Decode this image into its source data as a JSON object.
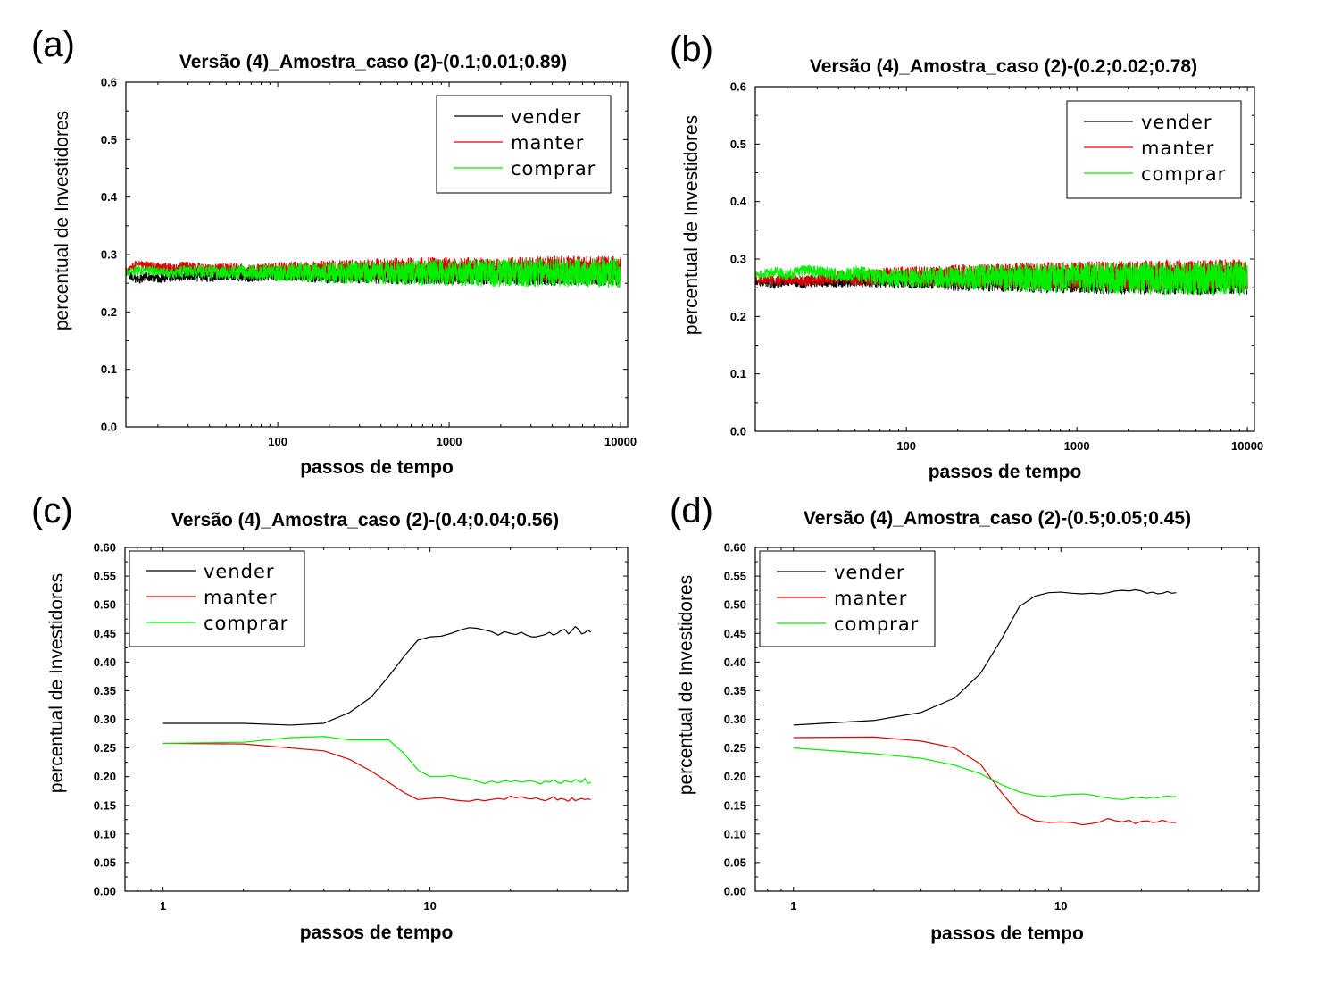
{
  "chart_data": [
    {
      "panel": "(a)",
      "type": "line",
      "title": "Versão (4)_Amostra_caso (2)-(0.1;0.01;0.89)",
      "xlabel": "passos de tempo",
      "ylabel": "percentual de Investidores",
      "xscale": "log",
      "xlim": [
        13,
        11000
      ],
      "ylim": [
        0.0,
        0.6
      ],
      "xticks": [
        100,
        1000,
        10000
      ],
      "xtick_labels": [
        "100",
        "1000",
        "10000"
      ],
      "yticks": [
        0.0,
        0.1,
        0.2,
        0.3,
        0.4,
        0.5,
        0.6
      ],
      "ytick_labels": [
        "0.0",
        "0.1",
        "0.2",
        "0.3",
        "0.4",
        "0.5",
        "0.6"
      ],
      "legend_position": "top-right",
      "series": [
        {
          "name": "vender",
          "color": "#000000",
          "x": [
            13,
            15,
            17,
            20,
            25,
            30,
            40,
            50,
            70,
            100,
            150,
            200,
            300,
            500,
            1000,
            2000,
            5000,
            10000
          ],
          "y": [
            0.268,
            0.255,
            0.262,
            0.258,
            0.262,
            0.264,
            0.261,
            0.266,
            0.263,
            0.267,
            0.265,
            0.264,
            0.266,
            0.265,
            0.266,
            0.266,
            0.265,
            0.266
          ],
          "noise": [
            0.004,
            0.005,
            0.005,
            0.005,
            0.005,
            0.006,
            0.006,
            0.006,
            0.007,
            0.007,
            0.008,
            0.009,
            0.01,
            0.01,
            0.011,
            0.011,
            0.012,
            0.012
          ]
        },
        {
          "name": "manter",
          "color": "#dd0000",
          "x": [
            13,
            15,
            17,
            20,
            25,
            30,
            40,
            50,
            70,
            100,
            150,
            200,
            300,
            500,
            1000,
            2000,
            5000,
            10000
          ],
          "y": [
            0.27,
            0.283,
            0.28,
            0.278,
            0.276,
            0.279,
            0.273,
            0.275,
            0.272,
            0.274,
            0.273,
            0.274,
            0.274,
            0.275,
            0.274,
            0.274,
            0.275,
            0.275
          ],
          "noise": [
            0.004,
            0.005,
            0.005,
            0.005,
            0.006,
            0.006,
            0.006,
            0.007,
            0.007,
            0.008,
            0.009,
            0.01,
            0.011,
            0.012,
            0.013,
            0.013,
            0.014,
            0.014
          ]
        },
        {
          "name": "comprar",
          "color": "#00ee00",
          "x": [
            13,
            15,
            17,
            20,
            25,
            30,
            40,
            50,
            70,
            100,
            150,
            200,
            300,
            500,
            1000,
            2000,
            5000,
            10000
          ],
          "y": [
            0.268,
            0.272,
            0.273,
            0.27,
            0.268,
            0.272,
            0.27,
            0.268,
            0.27,
            0.268,
            0.269,
            0.268,
            0.269,
            0.268,
            0.268,
            0.268,
            0.268,
            0.268
          ],
          "noise": [
            0.004,
            0.005,
            0.005,
            0.006,
            0.006,
            0.006,
            0.007,
            0.007,
            0.008,
            0.009,
            0.01,
            0.011,
            0.012,
            0.013,
            0.014,
            0.015,
            0.015,
            0.016
          ]
        }
      ]
    },
    {
      "panel": "(b)",
      "type": "line",
      "title": "Versão (4)_Amostra_caso (2)-(0.2;0.02;0.78)",
      "xlabel": "passos de tempo",
      "ylabel": "percentual de Investidores",
      "xscale": "log",
      "xlim": [
        13,
        11000
      ],
      "ylim": [
        0.0,
        0.6
      ],
      "xticks": [
        100,
        1000,
        10000
      ],
      "xtick_labels": [
        "100",
        "1000",
        "10000"
      ],
      "yticks": [
        0.0,
        0.1,
        0.2,
        0.3,
        0.4,
        0.5,
        0.6
      ],
      "ytick_labels": [
        "0.0",
        "0.1",
        "0.2",
        "0.3",
        "0.4",
        "0.5",
        "0.6"
      ],
      "legend_position": "top-right",
      "series": [
        {
          "name": "vender",
          "color": "#000000",
          "x": [
            13,
            15,
            17,
            20,
            25,
            30,
            40,
            50,
            70,
            100,
            150,
            200,
            300,
            500,
            1000,
            2000,
            5000,
            10000
          ],
          "y": [
            0.262,
            0.258,
            0.255,
            0.262,
            0.258,
            0.262,
            0.26,
            0.263,
            0.262,
            0.264,
            0.263,
            0.262,
            0.263,
            0.262,
            0.263,
            0.263,
            0.262,
            0.263
          ],
          "noise": [
            0.004,
            0.005,
            0.005,
            0.005,
            0.006,
            0.006,
            0.006,
            0.007,
            0.008,
            0.009,
            0.01,
            0.011,
            0.012,
            0.013,
            0.014,
            0.015,
            0.015,
            0.015
          ]
        },
        {
          "name": "manter",
          "color": "#dd0000",
          "x": [
            13,
            15,
            17,
            20,
            25,
            30,
            40,
            50,
            70,
            100,
            150,
            200,
            300,
            500,
            1000,
            2000,
            5000,
            10000
          ],
          "y": [
            0.262,
            0.265,
            0.262,
            0.265,
            0.262,
            0.264,
            0.268,
            0.265,
            0.27,
            0.272,
            0.27,
            0.271,
            0.27,
            0.271,
            0.271,
            0.272,
            0.272,
            0.272
          ],
          "noise": [
            0.004,
            0.005,
            0.005,
            0.006,
            0.006,
            0.006,
            0.007,
            0.008,
            0.009,
            0.01,
            0.011,
            0.012,
            0.013,
            0.014,
            0.015,
            0.016,
            0.017,
            0.017
          ]
        },
        {
          "name": "comprar",
          "color": "#00ee00",
          "x": [
            13,
            15,
            17,
            20,
            25,
            30,
            40,
            50,
            70,
            100,
            150,
            200,
            300,
            500,
            1000,
            2000,
            5000,
            10000
          ],
          "y": [
            0.272,
            0.275,
            0.278,
            0.272,
            0.28,
            0.278,
            0.272,
            0.275,
            0.268,
            0.268,
            0.268,
            0.267,
            0.268,
            0.267,
            0.267,
            0.267,
            0.266,
            0.266
          ],
          "noise": [
            0.004,
            0.005,
            0.005,
            0.006,
            0.006,
            0.007,
            0.007,
            0.008,
            0.009,
            0.01,
            0.011,
            0.012,
            0.014,
            0.015,
            0.016,
            0.017,
            0.018,
            0.018
          ]
        }
      ]
    },
    {
      "panel": "(c)",
      "type": "line",
      "title": "Versão (4)_Amostra_caso (2)-(0.4;0.04;0.56)",
      "xlabel": "passos de tempo",
      "ylabel": "percentual de Investidores",
      "xscale": "log",
      "xlim": [
        0.72,
        55
      ],
      "ylim": [
        0.0,
        0.6
      ],
      "xticks": [
        1,
        10
      ],
      "xtick_labels": [
        "1",
        "10"
      ],
      "yticks": [
        0.0,
        0.05,
        0.1,
        0.15,
        0.2,
        0.25,
        0.3,
        0.35,
        0.4,
        0.45,
        0.5,
        0.55,
        0.6
      ],
      "ytick_labels": [
        "0.00",
        "0.05",
        "0.10",
        "0.15",
        "0.20",
        "0.25",
        "0.30",
        "0.35",
        "0.40",
        "0.45",
        "0.50",
        "0.55",
        "0.60"
      ],
      "legend_position": "top-left",
      "series": [
        {
          "name": "vender",
          "color": "#000000",
          "x": [
            1,
            2,
            3,
            4,
            5,
            6,
            7,
            8,
            9,
            10,
            11,
            12,
            13,
            14,
            15,
            16,
            17,
            18,
            19,
            20,
            21,
            22,
            23,
            24,
            25,
            26,
            27,
            28,
            29,
            30,
            31,
            32,
            33,
            34,
            35,
            36,
            37,
            38,
            39,
            40
          ],
          "y": [
            0.293,
            0.293,
            0.29,
            0.293,
            0.312,
            0.338,
            0.375,
            0.41,
            0.438,
            0.444,
            0.445,
            0.45,
            0.456,
            0.46,
            0.459,
            0.456,
            0.453,
            0.447,
            0.453,
            0.45,
            0.448,
            0.452,
            0.447,
            0.444,
            0.444,
            0.446,
            0.448,
            0.452,
            0.447,
            0.45,
            0.455,
            0.457,
            0.449,
            0.455,
            0.462,
            0.457,
            0.449,
            0.451,
            0.456,
            0.452
          ]
        },
        {
          "name": "manter",
          "color": "#dd0000",
          "x": [
            1,
            2,
            3,
            4,
            5,
            6,
            7,
            8,
            9,
            10,
            11,
            12,
            13,
            14,
            15,
            16,
            17,
            18,
            19,
            20,
            21,
            22,
            23,
            24,
            25,
            26,
            27,
            28,
            29,
            30,
            31,
            32,
            33,
            34,
            35,
            36,
            37,
            38,
            39,
            40
          ],
          "y": [
            0.258,
            0.257,
            0.25,
            0.245,
            0.23,
            0.21,
            0.19,
            0.172,
            0.16,
            0.162,
            0.163,
            0.16,
            0.158,
            0.157,
            0.16,
            0.158,
            0.16,
            0.162,
            0.16,
            0.166,
            0.163,
            0.165,
            0.162,
            0.161,
            0.163,
            0.16,
            0.158,
            0.161,
            0.165,
            0.159,
            0.162,
            0.16,
            0.157,
            0.163,
            0.158,
            0.16,
            0.162,
            0.16,
            0.161,
            0.16
          ]
        },
        {
          "name": "comprar",
          "color": "#00ee00",
          "x": [
            1,
            2,
            3,
            4,
            5,
            6,
            7,
            8,
            9,
            10,
            11,
            12,
            13,
            14,
            15,
            16,
            17,
            18,
            19,
            20,
            21,
            22,
            23,
            24,
            25,
            26,
            27,
            28,
            29,
            30,
            31,
            32,
            33,
            34,
            35,
            36,
            37,
            38,
            39,
            40
          ],
          "y": [
            0.258,
            0.26,
            0.268,
            0.27,
            0.264,
            0.264,
            0.264,
            0.24,
            0.212,
            0.2,
            0.2,
            0.202,
            0.198,
            0.196,
            0.192,
            0.188,
            0.192,
            0.189,
            0.193,
            0.191,
            0.193,
            0.19,
            0.192,
            0.193,
            0.19,
            0.187,
            0.192,
            0.19,
            0.194,
            0.19,
            0.188,
            0.193,
            0.191,
            0.19,
            0.195,
            0.192,
            0.19,
            0.197,
            0.188,
            0.19
          ]
        }
      ]
    },
    {
      "panel": "(d)",
      "type": "line",
      "title": "Versão (4)_Amostra_caso (2)-(0.5;0.05;0.45)",
      "xlabel": "passos de tempo",
      "ylabel": "percentual de Investidores",
      "xscale": "log",
      "xlim": [
        0.72,
        55
      ],
      "ylim": [
        0.0,
        0.6
      ],
      "xticks": [
        1,
        10
      ],
      "xtick_labels": [
        "1",
        "10"
      ],
      "yticks": [
        0.0,
        0.05,
        0.1,
        0.15,
        0.2,
        0.25,
        0.3,
        0.35,
        0.4,
        0.45,
        0.5,
        0.55,
        0.6
      ],
      "ytick_labels": [
        "0.00",
        "0.05",
        "0.10",
        "0.15",
        "0.20",
        "0.25",
        "0.30",
        "0.35",
        "0.40",
        "0.45",
        "0.50",
        "0.55",
        "0.60"
      ],
      "legend_position": "top-left",
      "series": [
        {
          "name": "vender",
          "color": "#000000",
          "x": [
            1,
            2,
            3,
            4,
            5,
            6,
            7,
            8,
            9,
            10,
            11,
            12,
            13,
            14,
            15,
            16,
            17,
            18,
            19,
            20,
            21,
            22,
            23,
            24,
            25,
            26,
            27
          ],
          "y": [
            0.29,
            0.298,
            0.312,
            0.337,
            0.38,
            0.44,
            0.497,
            0.515,
            0.521,
            0.522,
            0.52,
            0.519,
            0.52,
            0.519,
            0.521,
            0.524,
            0.525,
            0.524,
            0.526,
            0.524,
            0.52,
            0.522,
            0.519,
            0.52,
            0.523,
            0.52,
            0.521
          ]
        },
        {
          "name": "manter",
          "color": "#dd0000",
          "x": [
            1,
            2,
            3,
            4,
            5,
            6,
            7,
            8,
            9,
            10,
            11,
            12,
            13,
            14,
            15,
            16,
            17,
            18,
            19,
            20,
            21,
            22,
            23,
            24,
            25,
            26,
            27
          ],
          "y": [
            0.268,
            0.269,
            0.262,
            0.25,
            0.222,
            0.172,
            0.135,
            0.123,
            0.12,
            0.121,
            0.12,
            0.116,
            0.118,
            0.121,
            0.127,
            0.123,
            0.121,
            0.124,
            0.118,
            0.122,
            0.123,
            0.12,
            0.121,
            0.124,
            0.121,
            0.12,
            0.12
          ]
        },
        {
          "name": "comprar",
          "color": "#00ee00",
          "x": [
            1,
            2,
            3,
            4,
            5,
            6,
            7,
            8,
            9,
            10,
            11,
            12,
            13,
            14,
            15,
            16,
            17,
            18,
            19,
            20,
            21,
            22,
            23,
            24,
            25,
            26,
            27
          ],
          "y": [
            0.25,
            0.24,
            0.232,
            0.22,
            0.205,
            0.186,
            0.173,
            0.167,
            0.165,
            0.168,
            0.169,
            0.17,
            0.168,
            0.165,
            0.163,
            0.161,
            0.16,
            0.162,
            0.164,
            0.163,
            0.162,
            0.164,
            0.163,
            0.165,
            0.166,
            0.165,
            0.165
          ]
        }
      ]
    }
  ]
}
